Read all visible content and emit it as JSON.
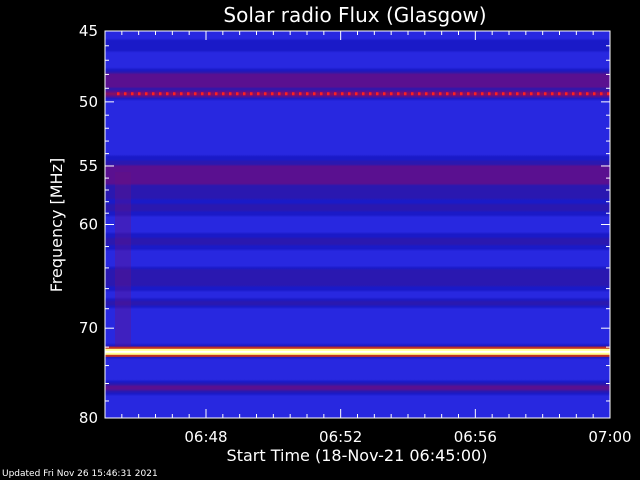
{
  "chart_data": {
    "type": "heatmap",
    "title": "Solar radio Flux (Glasgow)",
    "xlabel": "Start Time (18-Nov-21 06:45:00)",
    "ylabel": "Frequency [MHz]",
    "x_unit": "minutes",
    "xlim": [
      0,
      15
    ],
    "ylim": [
      45,
      80
    ],
    "y_scale": "log",
    "x_ticks": [
      {
        "value": 3,
        "label": "06:48"
      },
      {
        "value": 7,
        "label": "06:52"
      },
      {
        "value": 11,
        "label": "06:56"
      },
      {
        "value": 15,
        "label": "07:00"
      }
    ],
    "y_ticks": [
      45,
      50,
      55,
      60,
      70,
      80
    ],
    "bands": [
      {
        "freq": 46.0,
        "width": 0.8,
        "level": 0.15
      },
      {
        "freq": 48.5,
        "width": 1.0,
        "level": 0.45
      },
      {
        "freq": 49.4,
        "width": 0.4,
        "level": 0.55
      },
      {
        "freq": 55.8,
        "width": 1.6,
        "level": 0.45
      },
      {
        "freq": 57.0,
        "width": 1.2,
        "level": 0.3
      },
      {
        "freq": 58.5,
        "width": 1.0,
        "level": 0.2
      },
      {
        "freq": 61.5,
        "width": 1.2,
        "level": 0.2
      },
      {
        "freq": 65.0,
        "width": 1.4,
        "level": 0.3
      },
      {
        "freq": 67.5,
        "width": 0.8,
        "level": 0.2
      },
      {
        "freq": 72.5,
        "width": 0.6,
        "level": 1.0
      },
      {
        "freq": 76.5,
        "width": 0.8,
        "level": 0.35
      }
    ],
    "interference_line": {
      "freq": 49.4,
      "color": "#ff2020"
    },
    "colors": {
      "background": "#000000",
      "low": "#1010c8",
      "mid": "#800060",
      "high": "#ffffc0"
    }
  },
  "footer": "Updated Fri Nov 26 15:46:31 2021"
}
